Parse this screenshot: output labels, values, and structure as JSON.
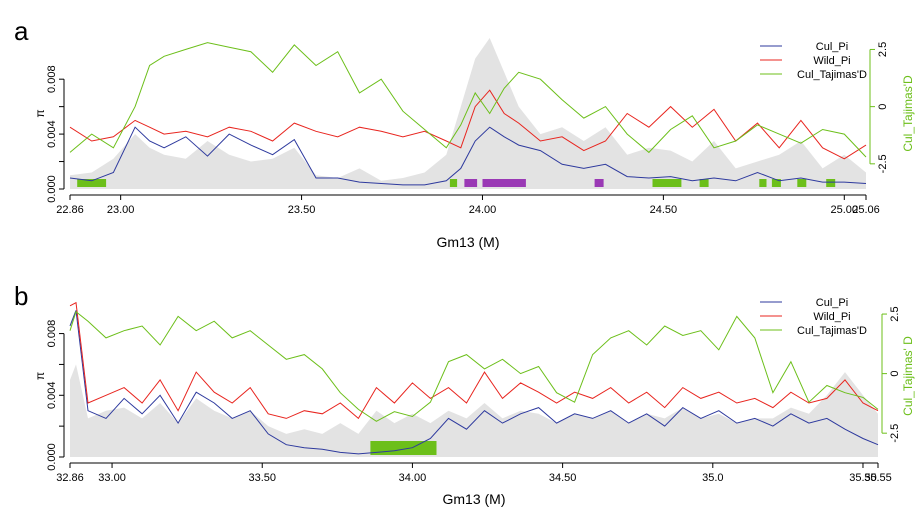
{
  "colors": {
    "cul_pi": "#2e3a9e",
    "wild_pi": "#e8251f",
    "tajima": "#6cbf1a",
    "background_area": "#e3e3e3",
    "region_green": "#6cbf1a",
    "region_purple": "#9a39b5",
    "axis": "#000000"
  },
  "chart_data": [
    {
      "panel_label": "a",
      "type": "line",
      "xlabel": "Gm13 (M)",
      "ylabel": "π",
      "y2label": "Cul_Tajimas'D",
      "xlim": [
        22.86,
        25.06
      ],
      "ylim": [
        0,
        0.011
      ],
      "y2lim": [
        -3.6,
        3.0
      ],
      "x_ticks": [
        22.86,
        23.0,
        23.5,
        24.0,
        24.5,
        25.0,
        25.06
      ],
      "x_tick_labels": [
        "22.86",
        "23.00",
        "23.50",
        "24.00",
        "24.50",
        "25.00",
        "25.06"
      ],
      "y_ticks": [
        0,
        0.002,
        0.004,
        0.006,
        0.008
      ],
      "y_tick_labels": [
        "0.000",
        "",
        "0.004",
        "",
        "0.008"
      ],
      "y2_ticks": [
        -2.5,
        0,
        2.5
      ],
      "y2_tick_labels": [
        "-2.5",
        "0",
        "2.5"
      ],
      "legend": {
        "position": "top-right",
        "entries": [
          "Cul_Pi",
          "Wild_Pi",
          "Cul_Tajimas'D"
        ]
      },
      "regions": [
        {
          "start": 22.88,
          "end": 22.96,
          "color": "green"
        },
        {
          "start": 23.91,
          "end": 23.93,
          "color": "green"
        },
        {
          "start": 23.95,
          "end": 23.985,
          "color": "purple"
        },
        {
          "start": 24.0,
          "end": 24.12,
          "color": "purple"
        },
        {
          "start": 24.31,
          "end": 24.335,
          "color": "purple"
        },
        {
          "start": 24.47,
          "end": 24.55,
          "color": "green"
        },
        {
          "start": 24.6,
          "end": 24.625,
          "color": "green"
        },
        {
          "start": 24.765,
          "end": 24.785,
          "color": "green"
        },
        {
          "start": 24.8,
          "end": 24.825,
          "color": "green"
        },
        {
          "start": 24.87,
          "end": 24.895,
          "color": "green"
        },
        {
          "start": 24.95,
          "end": 24.975,
          "color": "green"
        }
      ],
      "series": [
        {
          "name": "Cul_Pi",
          "axis": "left",
          "x": [
            22.86,
            22.92,
            22.98,
            23.04,
            23.08,
            23.12,
            23.18,
            23.24,
            23.3,
            23.36,
            23.42,
            23.48,
            23.54,
            23.6,
            23.66,
            23.72,
            23.78,
            23.84,
            23.9,
            23.94,
            23.98,
            24.02,
            24.06,
            24.1,
            24.16,
            24.22,
            24.28,
            24.34,
            24.4,
            24.46,
            24.52,
            24.58,
            24.64,
            24.7,
            24.76,
            24.82,
            24.88,
            24.94,
            25.0,
            25.06
          ],
          "y": [
            0.0008,
            0.0006,
            0.0012,
            0.0045,
            0.0035,
            0.003,
            0.0038,
            0.0024,
            0.004,
            0.0032,
            0.0025,
            0.0036,
            0.0008,
            0.0008,
            0.0005,
            0.0004,
            0.0003,
            0.0003,
            0.0006,
            0.0015,
            0.0035,
            0.0045,
            0.0038,
            0.0032,
            0.0028,
            0.0018,
            0.0015,
            0.0018,
            0.0009,
            0.0008,
            0.0009,
            0.0006,
            0.0008,
            0.0006,
            0.0012,
            0.0006,
            0.0008,
            0.0005,
            0.0005,
            0.0004
          ]
        },
        {
          "name": "Wild_Pi",
          "axis": "left",
          "x": [
            22.86,
            22.92,
            22.98,
            23.04,
            23.08,
            23.12,
            23.18,
            23.24,
            23.3,
            23.36,
            23.42,
            23.48,
            23.54,
            23.6,
            23.66,
            23.72,
            23.78,
            23.84,
            23.9,
            23.94,
            23.98,
            24.02,
            24.06,
            24.1,
            24.16,
            24.22,
            24.28,
            24.34,
            24.4,
            24.46,
            24.52,
            24.58,
            24.64,
            24.7,
            24.76,
            24.82,
            24.88,
            24.94,
            25.0,
            25.06
          ],
          "y": [
            0.0045,
            0.0035,
            0.0038,
            0.005,
            0.0045,
            0.004,
            0.0042,
            0.0038,
            0.0045,
            0.0042,
            0.0035,
            0.0048,
            0.0042,
            0.0038,
            0.0045,
            0.0042,
            0.0038,
            0.0042,
            0.0035,
            0.003,
            0.006,
            0.0072,
            0.0055,
            0.0048,
            0.0035,
            0.0038,
            0.0028,
            0.0035,
            0.0055,
            0.0045,
            0.006,
            0.0045,
            0.0058,
            0.0035,
            0.0048,
            0.003,
            0.005,
            0.003,
            0.0022,
            0.0032
          ]
        },
        {
          "name": "Cul_Tajimas'D",
          "axis": "right",
          "x": [
            22.86,
            22.92,
            22.98,
            23.04,
            23.08,
            23.12,
            23.18,
            23.24,
            23.3,
            23.36,
            23.42,
            23.48,
            23.54,
            23.6,
            23.66,
            23.72,
            23.78,
            23.84,
            23.9,
            23.94,
            23.98,
            24.02,
            24.06,
            24.1,
            24.16,
            24.22,
            24.28,
            24.34,
            24.4,
            24.46,
            24.52,
            24.58,
            24.64,
            24.7,
            24.76,
            24.82,
            24.88,
            24.94,
            25.0,
            25.06
          ],
          "y": [
            -2.0,
            -1.2,
            -1.8,
            0.0,
            1.8,
            2.2,
            2.5,
            2.8,
            2.6,
            2.4,
            1.5,
            2.7,
            1.8,
            2.4,
            0.6,
            1.2,
            -0.2,
            -1.0,
            -1.8,
            -0.8,
            0.6,
            -0.3,
            0.8,
            1.5,
            1.2,
            0.3,
            -0.5,
            0.0,
            -1.2,
            -2.0,
            -1.0,
            -0.4,
            -1.8,
            -1.5,
            -0.8,
            -1.2,
            -1.6,
            -1.0,
            -1.2,
            -2.2
          ]
        },
        {
          "name": "",
          "axis": "left",
          "style": "area",
          "x": [
            22.86,
            22.92,
            22.98,
            23.04,
            23.08,
            23.12,
            23.18,
            23.24,
            23.3,
            23.36,
            23.42,
            23.48,
            23.54,
            23.6,
            23.66,
            23.72,
            23.78,
            23.84,
            23.9,
            23.94,
            23.98,
            24.02,
            24.06,
            24.1,
            24.16,
            24.22,
            24.28,
            24.34,
            24.4,
            24.46,
            24.52,
            24.58,
            24.64,
            24.7,
            24.76,
            24.82,
            24.88,
            24.94,
            25.0,
            25.06
          ],
          "y": [
            0.001,
            0.0012,
            0.0022,
            0.004,
            0.003,
            0.0025,
            0.0022,
            0.0035,
            0.0025,
            0.002,
            0.0022,
            0.003,
            0.001,
            0.0008,
            0.0015,
            0.0006,
            0.0008,
            0.0012,
            0.0025,
            0.006,
            0.0095,
            0.011,
            0.0085,
            0.006,
            0.004,
            0.0045,
            0.0035,
            0.0045,
            0.0025,
            0.003,
            0.0028,
            0.002,
            0.0035,
            0.0015,
            0.002,
            0.0025,
            0.0035,
            0.0015,
            0.0025,
            0.0012
          ]
        }
      ]
    },
    {
      "panel_label": "b",
      "type": "line",
      "xlabel": "Gm13 (M)",
      "ylabel": "π",
      "y2label": "Cul_Tajimas' D",
      "xlim": [
        32.86,
        35.55
      ],
      "ylim": [
        0,
        0.0105
      ],
      "y2lim": [
        -3.5,
        3.3
      ],
      "x_ticks": [
        32.86,
        33.0,
        33.5,
        34.0,
        34.5,
        35.0,
        35.5,
        35.55
      ],
      "x_tick_labels": [
        "32.86",
        "33.00",
        "33.50",
        "34.00",
        "34.50",
        "35.0",
        "35.50",
        "35.55"
      ],
      "y_ticks": [
        0,
        0.002,
        0.004,
        0.006,
        0.008
      ],
      "y_tick_labels": [
        "0.000",
        "",
        "0.004",
        "",
        "0.008"
      ],
      "y2_ticks": [
        -2.5,
        0,
        2.5
      ],
      "y2_tick_labels": [
        "-2.5",
        "0",
        "2.5"
      ],
      "legend": {
        "position": "top-right",
        "entries": [
          "Cul_Pi",
          "Wild_Pi",
          "Cul_Tajimas'D"
        ]
      },
      "regions": [
        {
          "start": 33.86,
          "end": 34.08,
          "color": "green"
        }
      ],
      "series": [
        {
          "name": "Cul_Pi",
          "axis": "left",
          "x": [
            32.86,
            32.88,
            32.92,
            32.98,
            33.04,
            33.1,
            33.16,
            33.22,
            33.28,
            33.34,
            33.4,
            33.46,
            33.52,
            33.58,
            33.64,
            33.7,
            33.76,
            33.82,
            33.88,
            33.94,
            34.0,
            34.06,
            34.12,
            34.18,
            34.24,
            34.3,
            34.36,
            34.42,
            34.48,
            34.54,
            34.6,
            34.66,
            34.72,
            34.78,
            34.84,
            34.9,
            34.96,
            35.02,
            35.08,
            35.14,
            35.2,
            35.26,
            35.32,
            35.38,
            35.44,
            35.5,
            35.55
          ],
          "y": [
            0.0085,
            0.0095,
            0.003,
            0.0025,
            0.0038,
            0.0028,
            0.004,
            0.0022,
            0.0042,
            0.0035,
            0.0025,
            0.003,
            0.0015,
            0.0008,
            0.0006,
            0.0005,
            0.0003,
            0.0002,
            0.0003,
            0.0004,
            0.0006,
            0.0012,
            0.0025,
            0.0018,
            0.003,
            0.0022,
            0.0028,
            0.0032,
            0.0022,
            0.0028,
            0.0025,
            0.003,
            0.0022,
            0.0028,
            0.002,
            0.0032,
            0.0025,
            0.003,
            0.0022,
            0.0025,
            0.002,
            0.0028,
            0.0022,
            0.0025,
            0.0018,
            0.0012,
            0.0008
          ]
        },
        {
          "name": "Wild_Pi",
          "axis": "left",
          "x": [
            32.86,
            32.88,
            32.92,
            32.98,
            33.04,
            33.1,
            33.16,
            33.22,
            33.28,
            33.34,
            33.4,
            33.46,
            33.52,
            33.58,
            33.64,
            33.7,
            33.76,
            33.82,
            33.88,
            33.94,
            34.0,
            34.06,
            34.12,
            34.18,
            34.24,
            34.3,
            34.36,
            34.42,
            34.48,
            34.54,
            34.6,
            34.66,
            34.72,
            34.78,
            34.84,
            34.9,
            34.96,
            35.02,
            35.08,
            35.14,
            35.2,
            35.26,
            35.32,
            35.38,
            35.44,
            35.5,
            35.55
          ],
          "y": [
            0.0098,
            0.01,
            0.0035,
            0.004,
            0.0045,
            0.0035,
            0.005,
            0.003,
            0.0055,
            0.0042,
            0.0035,
            0.0045,
            0.0028,
            0.0025,
            0.003,
            0.0028,
            0.0035,
            0.0025,
            0.0045,
            0.0035,
            0.0048,
            0.0038,
            0.0045,
            0.0035,
            0.0055,
            0.0038,
            0.0048,
            0.0042,
            0.0035,
            0.0042,
            0.0038,
            0.0045,
            0.0035,
            0.0042,
            0.0032,
            0.0045,
            0.0038,
            0.0042,
            0.0035,
            0.0038,
            0.0032,
            0.0042,
            0.0035,
            0.0038,
            0.005,
            0.0035,
            0.003
          ]
        },
        {
          "name": "Cul_Tajimas'D",
          "axis": "right",
          "x": [
            32.86,
            32.88,
            32.92,
            32.98,
            33.04,
            33.1,
            33.16,
            33.22,
            33.28,
            33.34,
            33.4,
            33.46,
            33.52,
            33.58,
            33.64,
            33.7,
            33.76,
            33.82,
            33.88,
            33.94,
            34.0,
            34.06,
            34.12,
            34.18,
            34.24,
            34.3,
            34.36,
            34.42,
            34.48,
            34.54,
            34.6,
            34.66,
            34.72,
            34.78,
            34.84,
            34.9,
            34.96,
            35.02,
            35.08,
            35.14,
            35.2,
            35.26,
            35.32,
            35.38,
            35.44,
            35.5,
            35.55
          ],
          "y": [
            1.8,
            2.6,
            2.2,
            1.5,
            1.8,
            2.0,
            1.2,
            2.4,
            1.8,
            2.2,
            1.5,
            1.8,
            1.2,
            0.6,
            0.8,
            0.2,
            -0.8,
            -1.5,
            -2.0,
            -1.6,
            -1.8,
            -1.2,
            0.5,
            0.8,
            0.2,
            0.6,
            0.0,
            0.3,
            -0.8,
            -1.2,
            0.8,
            1.5,
            1.8,
            1.2,
            2.0,
            1.6,
            1.8,
            1.0,
            2.4,
            1.5,
            -0.8,
            0.5,
            -1.2,
            -0.5,
            -0.8,
            -1.0,
            -1.5
          ]
        },
        {
          "name": "",
          "axis": "left",
          "style": "area",
          "x": [
            32.86,
            32.88,
            32.92,
            32.98,
            33.04,
            33.1,
            33.16,
            33.22,
            33.28,
            33.34,
            33.4,
            33.46,
            33.52,
            33.58,
            33.64,
            33.7,
            33.76,
            33.82,
            33.88,
            33.94,
            34.0,
            34.06,
            34.12,
            34.18,
            34.24,
            34.3,
            34.36,
            34.42,
            34.48,
            34.54,
            34.6,
            34.66,
            34.72,
            34.78,
            34.84,
            34.9,
            34.96,
            35.02,
            35.08,
            35.14,
            35.2,
            35.26,
            35.32,
            35.38,
            35.44,
            35.5,
            35.55
          ],
          "y": [
            0.005,
            0.006,
            0.0025,
            0.003,
            0.0032,
            0.0025,
            0.0035,
            0.0022,
            0.0038,
            0.003,
            0.0025,
            0.003,
            0.002,
            0.0015,
            0.0018,
            0.0015,
            0.0022,
            0.0015,
            0.003,
            0.0022,
            0.0028,
            0.0022,
            0.003,
            0.0025,
            0.0035,
            0.0025,
            0.003,
            0.0028,
            0.0022,
            0.0028,
            0.0025,
            0.003,
            0.0022,
            0.0028,
            0.0025,
            0.0032,
            0.0025,
            0.0028,
            0.0022,
            0.0025,
            0.0025,
            0.0032,
            0.0028,
            0.004,
            0.0055,
            0.004,
            0.0028
          ]
        }
      ]
    }
  ]
}
